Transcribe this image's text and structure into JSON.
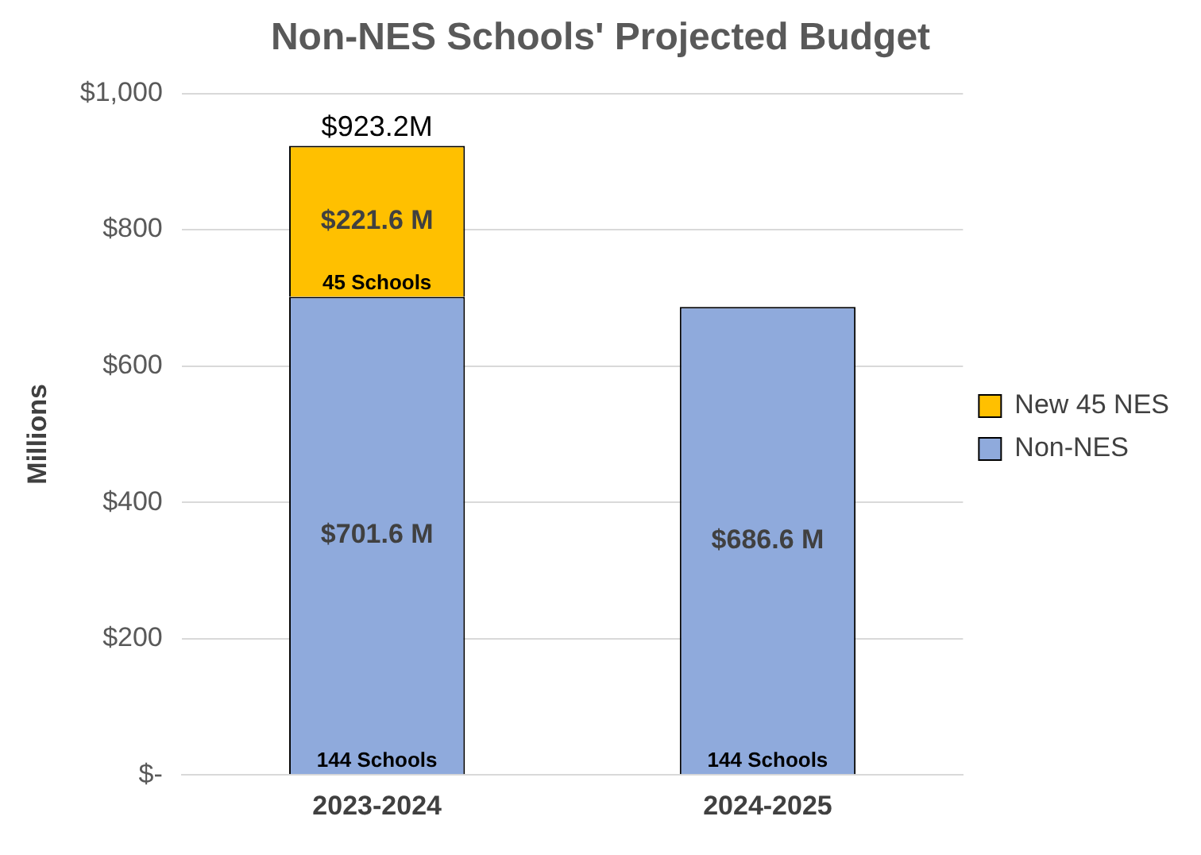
{
  "chart_data": {
    "type": "bar",
    "title": "Non-NES Schools' Projected Budget",
    "ylabel": "Millions",
    "stacked": true,
    "categories": [
      "2023-2024",
      "2024-2025"
    ],
    "series": [
      {
        "name": "Non-NES",
        "color": "#8faadc",
        "values": [
          701.6,
          686.6
        ],
        "value_labels": [
          "$701.6 M",
          "$686.6 M"
        ]
      },
      {
        "name": "New 45 NES",
        "color": "#ffc000",
        "values": [
          221.6,
          null
        ],
        "value_labels": [
          "$221.6 M",
          null
        ]
      }
    ],
    "totals": [
      "$923.2M",
      null
    ],
    "annotations": [
      {
        "text": "144 Schools",
        "x": "2023-2024",
        "y": 0
      },
      {
        "text": "144 Schools",
        "x": "2024-2025",
        "y": 0
      },
      {
        "text": "45 Schools",
        "x": "2023-2024",
        "y": 701.6
      }
    ],
    "ylim": [
      0,
      1000
    ],
    "yticks": [
      {
        "value": 0,
        "label": "$-"
      },
      {
        "value": 200,
        "label": "$200"
      },
      {
        "value": 400,
        "label": "$400"
      },
      {
        "value": 600,
        "label": "$600"
      },
      {
        "value": 800,
        "label": "$800"
      },
      {
        "value": 1000,
        "label": "$1,000"
      }
    ],
    "grid": "y",
    "legend": "right"
  }
}
